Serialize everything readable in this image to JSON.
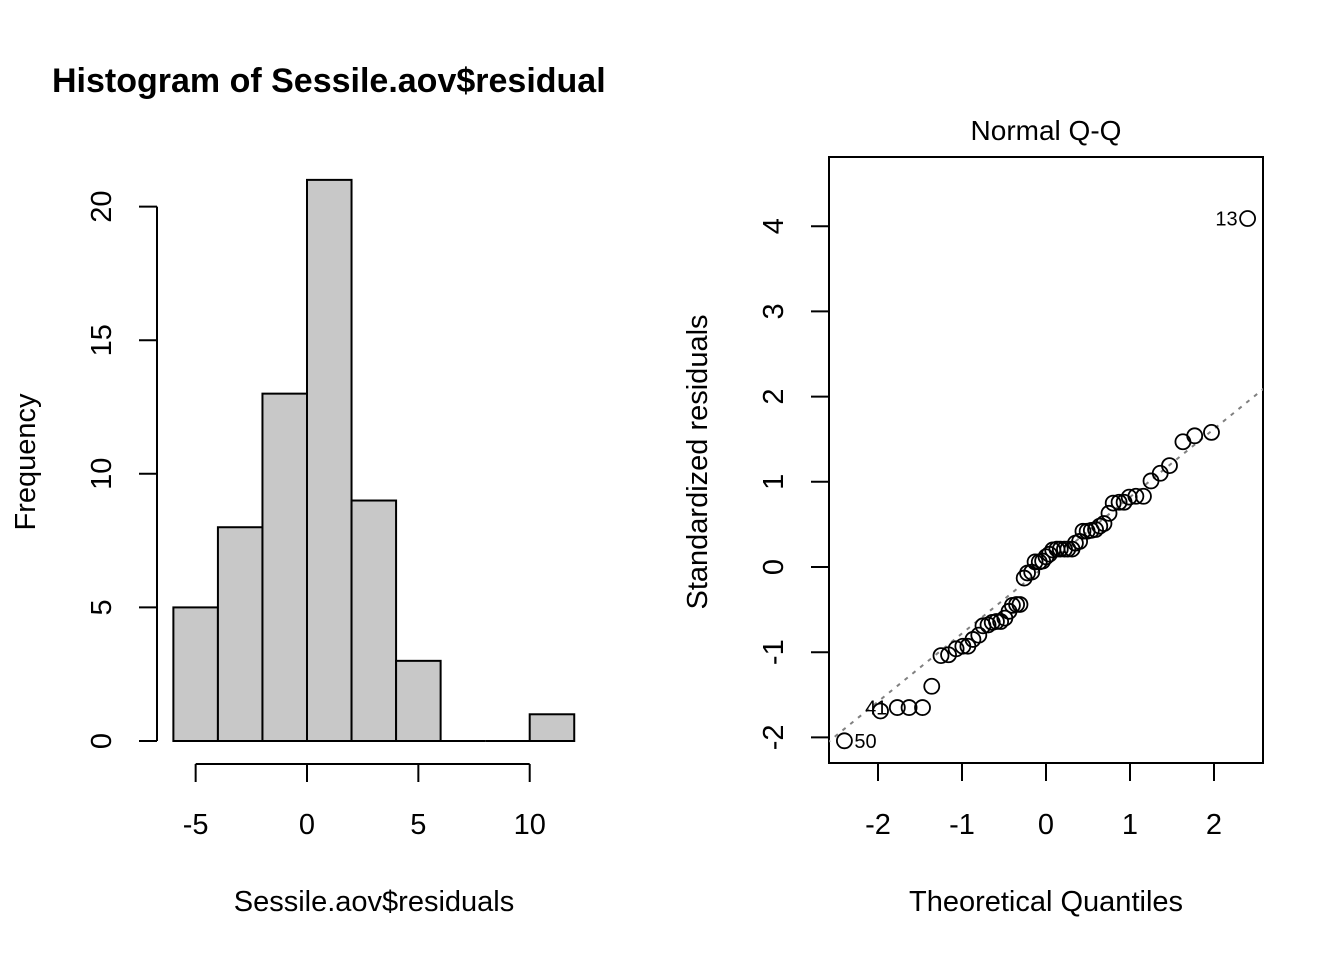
{
  "chart_data": [
    {
      "type": "bar",
      "subtype": "histogram",
      "title": "Histogram of Sessile.aov$residual",
      "xlabel": "Sessile.aov$residuals",
      "ylabel": "Frequency",
      "bin_edges": [
        -6,
        -4,
        -2,
        0,
        2,
        4,
        6,
        8,
        10,
        12
      ],
      "values": [
        5,
        8,
        13,
        21,
        9,
        3,
        0,
        0,
        1
      ],
      "xlim": [
        -7,
        13
      ],
      "ylim": [
        0,
        21
      ],
      "x_ticks": [
        -5,
        0,
        5,
        10
      ],
      "x_tick_labels": [
        "-5",
        "0",
        "5",
        "10"
      ],
      "y_ticks": [
        0,
        5,
        10,
        15,
        20
      ],
      "y_tick_labels": [
        "0",
        "5",
        "10",
        "15",
        "20"
      ],
      "bar_fill": "#c8c8c8",
      "bar_stroke": "#000000",
      "grid": false
    },
    {
      "type": "scatter",
      "subtype": "qq",
      "title": "Normal Q-Q",
      "xlabel": "Theoretical Quantiles",
      "ylabel": "Standardized residuals",
      "xlim": [
        -2.58,
        2.58
      ],
      "ylim": [
        -2.31,
        4.8
      ],
      "x_ticks": [
        -2,
        -1,
        0,
        1,
        2
      ],
      "x_tick_labels": [
        "-2",
        "-1",
        "0",
        "1",
        "2"
      ],
      "y_ticks": [
        -2,
        -1,
        0,
        1,
        2,
        3,
        4
      ],
      "y_tick_labels": [
        "-2",
        "-1",
        "0",
        "1",
        "2",
        "3",
        "4"
      ],
      "reference_line": {
        "intercept": 0.02,
        "slope": 0.8,
        "style": "dashed",
        "color": "#808080"
      },
      "point_labels": [
        {
          "label": "50",
          "x": -2.4,
          "y": -2.04,
          "side": "right"
        },
        {
          "label": "41",
          "x": -1.77,
          "y": -1.65,
          "side": "left"
        },
        {
          "label": "13",
          "x": 2.4,
          "y": 4.09,
          "side": "left"
        }
      ],
      "points": [
        {
          "x": -2.4,
          "y": -2.04
        },
        {
          "x": -1.97,
          "y": -1.69
        },
        {
          "x": -1.77,
          "y": -1.65
        },
        {
          "x": -1.63,
          "y": -1.65
        },
        {
          "x": -1.47,
          "y": -1.65
        },
        {
          "x": -1.36,
          "y": -1.4
        },
        {
          "x": -1.25,
          "y": -1.04
        },
        {
          "x": -1.16,
          "y": -1.03
        },
        {
          "x": -1.07,
          "y": -0.96
        },
        {
          "x": -0.99,
          "y": -0.93
        },
        {
          "x": -0.93,
          "y": -0.93
        },
        {
          "x": -0.87,
          "y": -0.85
        },
        {
          "x": -0.8,
          "y": -0.8
        },
        {
          "x": -0.75,
          "y": -0.69
        },
        {
          "x": -0.69,
          "y": -0.68
        },
        {
          "x": -0.64,
          "y": -0.65
        },
        {
          "x": -0.59,
          "y": -0.64
        },
        {
          "x": -0.54,
          "y": -0.64
        },
        {
          "x": -0.49,
          "y": -0.6
        },
        {
          "x": -0.44,
          "y": -0.52
        },
        {
          "x": -0.4,
          "y": -0.45
        },
        {
          "x": -0.35,
          "y": -0.44
        },
        {
          "x": -0.31,
          "y": -0.44
        },
        {
          "x": -0.26,
          "y": -0.13
        },
        {
          "x": -0.22,
          "y": -0.07
        },
        {
          "x": -0.17,
          "y": -0.06
        },
        {
          "x": -0.13,
          "y": 0.06
        },
        {
          "x": -0.08,
          "y": 0.06
        },
        {
          "x": -0.04,
          "y": 0.07
        },
        {
          "x": 0.0,
          "y": 0.12
        },
        {
          "x": 0.04,
          "y": 0.15
        },
        {
          "x": 0.08,
          "y": 0.2
        },
        {
          "x": 0.13,
          "y": 0.21
        },
        {
          "x": 0.17,
          "y": 0.21
        },
        {
          "x": 0.22,
          "y": 0.21
        },
        {
          "x": 0.26,
          "y": 0.21
        },
        {
          "x": 0.31,
          "y": 0.21
        },
        {
          "x": 0.35,
          "y": 0.28
        },
        {
          "x": 0.4,
          "y": 0.3
        },
        {
          "x": 0.44,
          "y": 0.42
        },
        {
          "x": 0.49,
          "y": 0.42
        },
        {
          "x": 0.54,
          "y": 0.43
        },
        {
          "x": 0.59,
          "y": 0.44
        },
        {
          "x": 0.64,
          "y": 0.48
        },
        {
          "x": 0.69,
          "y": 0.51
        },
        {
          "x": 0.75,
          "y": 0.63
        },
        {
          "x": 0.8,
          "y": 0.75
        },
        {
          "x": 0.87,
          "y": 0.76
        },
        {
          "x": 0.93,
          "y": 0.76
        },
        {
          "x": 0.99,
          "y": 0.82
        },
        {
          "x": 1.07,
          "y": 0.83
        },
        {
          "x": 1.16,
          "y": 0.83
        },
        {
          "x": 1.25,
          "y": 1.01
        },
        {
          "x": 1.36,
          "y": 1.1
        },
        {
          "x": 1.47,
          "y": 1.19
        },
        {
          "x": 1.63,
          "y": 1.47
        },
        {
          "x": 1.77,
          "y": 1.54
        },
        {
          "x": 1.97,
          "y": 1.58
        },
        {
          "x": 2.4,
          "y": 4.09
        }
      ],
      "grid": false
    }
  ]
}
